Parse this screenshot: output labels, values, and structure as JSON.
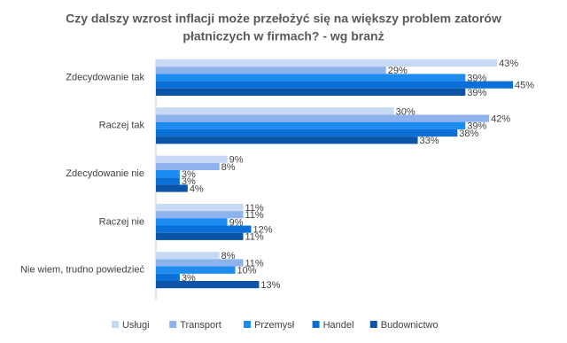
{
  "chart_data": {
    "type": "hbar",
    "title": [
      "Czy dalszy wzrost inflacji może przełożyć się na większy problem zatorów",
      "płatniczych w firmach? - wg branż"
    ],
    "categories": [
      "Zdecydowanie tak",
      "Raczej tak",
      "Zdecydowanie nie",
      "Raczej nie",
      "Nie wiem, trudno powiedzieć"
    ],
    "xlim": [
      0,
      45
    ],
    "series": [
      {
        "name": "Usługi",
        "color": "#c6d9f5",
        "values": [
          43,
          30,
          9,
          11,
          8
        ],
        "value_labels": [
          "43%",
          "30%",
          "9%",
          "11%",
          "8%"
        ]
      },
      {
        "name": "Transport",
        "color": "#8eb3ec",
        "values": [
          29,
          42,
          8,
          11,
          11
        ],
        "value_labels": [
          "29%",
          "42%",
          "8%",
          "11%",
          "11%"
        ]
      },
      {
        "name": "Przemysł",
        "color": "#1c8cf0",
        "values": [
          39,
          39,
          3,
          9,
          10
        ],
        "value_labels": [
          "39%",
          "39%",
          "3%",
          "9%",
          "10%"
        ]
      },
      {
        "name": "Handel",
        "color": "#0a6fd6",
        "values": [
          45,
          38,
          3,
          12,
          3
        ],
        "value_labels": [
          "45%",
          "38%",
          "3%",
          "12%",
          "3%"
        ]
      },
      {
        "name": "Budownictwo",
        "color": "#0b54a8",
        "values": [
          39,
          33,
          4,
          11,
          13
        ],
        "value_labels": [
          "39%",
          "33%",
          "4%",
          "11%",
          "13%"
        ]
      }
    ],
    "legend": "bottom"
  }
}
